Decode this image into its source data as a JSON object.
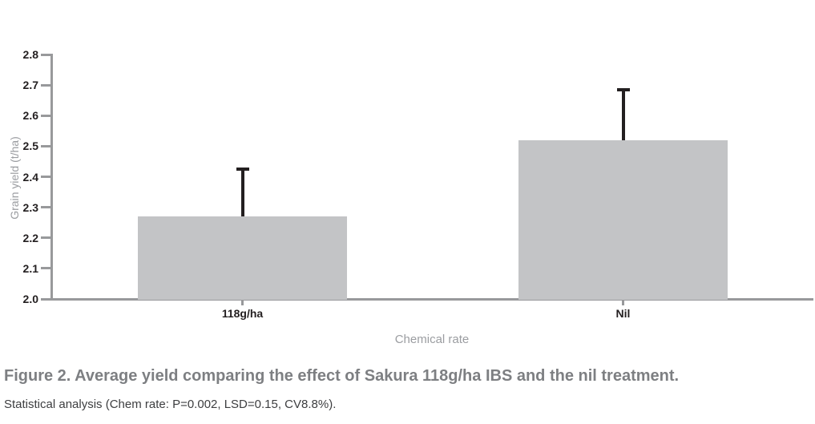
{
  "chart_data": {
    "type": "bar",
    "title": "",
    "categories": [
      "118g/ha",
      "Nil"
    ],
    "values": [
      2.27,
      2.52
    ],
    "error_bar_tops": [
      2.43,
      2.69
    ],
    "xlabel": "Chemical rate",
    "ylabel": "Grain yield (t/ha)",
    "ylim": [
      2.0,
      2.8
    ],
    "ytick_step": 0.1,
    "yticks": [
      "2.0",
      "2.1",
      "2.2",
      "2.3",
      "2.4",
      "2.5",
      "2.6",
      "2.7",
      "2.8"
    ],
    "grid": false,
    "legend": "none",
    "bar_color": "#c3c4c6",
    "error_bar_color": "#231f20",
    "axis_color": "#98999b"
  },
  "caption": {
    "title": "Figure 2. Average yield comparing the effect of Sakura 118g/ha IBS and the nil treatment.",
    "note": "Statistical analysis (Chem rate: P=0.002, LSD=0.15, CV8.8%)."
  }
}
